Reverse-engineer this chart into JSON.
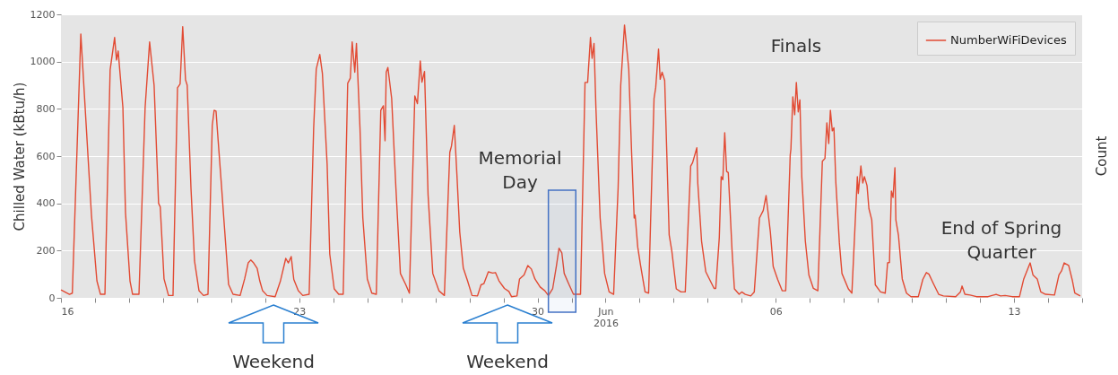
{
  "chart_data": {
    "type": "line",
    "ylabel": "Chilled Water (kBtu/h)",
    "y2label": "Count",
    "xlim": [
      "2016-05-16",
      "2016-06-15"
    ],
    "xticks": [
      {
        "value": "2016-05-16",
        "label": "16"
      },
      {
        "value": "2016-05-17",
        "label": null
      },
      {
        "value": "2016-05-18",
        "label": null
      },
      {
        "value": "2016-05-19",
        "label": null
      },
      {
        "value": "2016-05-20",
        "label": null
      },
      {
        "value": "2016-05-21",
        "label": null
      },
      {
        "value": "2016-05-22",
        "label": null
      },
      {
        "value": "2016-05-23",
        "label": "23"
      },
      {
        "value": "2016-05-24",
        "label": null
      },
      {
        "value": "2016-05-25",
        "label": null
      },
      {
        "value": "2016-05-26",
        "label": null
      },
      {
        "value": "2016-05-27",
        "label": null
      },
      {
        "value": "2016-05-28",
        "label": null
      },
      {
        "value": "2016-05-29",
        "label": null
      },
      {
        "value": "2016-05-30",
        "label": "30"
      },
      {
        "value": "2016-05-31",
        "label": null
      },
      {
        "value": "2016-06-01",
        "label": "Jun\n2016"
      },
      {
        "value": "2016-06-02",
        "label": null
      },
      {
        "value": "2016-06-03",
        "label": null
      },
      {
        "value": "2016-06-04",
        "label": null
      },
      {
        "value": "2016-06-05",
        "label": null
      },
      {
        "value": "2016-06-06",
        "label": "06"
      },
      {
        "value": "2016-06-07",
        "label": null
      },
      {
        "value": "2016-06-08",
        "label": null
      },
      {
        "value": "2016-06-09",
        "label": null
      },
      {
        "value": "2016-06-10",
        "label": null
      },
      {
        "value": "2016-06-11",
        "label": null
      },
      {
        "value": "2016-06-12",
        "label": null
      },
      {
        "value": "2016-06-13",
        "label": "13"
      },
      {
        "value": "2016-06-14",
        "label": null
      },
      {
        "value": "2016-06-15",
        "label": null
      }
    ],
    "ylim": [
      0,
      1200
    ],
    "yticks": [
      0,
      200,
      400,
      600,
      800,
      1000,
      1200
    ],
    "grid": "y",
    "legend": "top right",
    "bands": [
      {
        "axis": "x",
        "from": "2016-05-30T07:40",
        "to": "2016-05-31T03:00",
        "color": "#4472c4"
      }
    ],
    "annotations": [
      "Finals",
      "Memorial Day",
      "End of Spring Quarter",
      "Weekend",
      "Weekend"
    ],
    "series": [
      {
        "name": "NumberWiFiDevices",
        "color": "#e24a33",
        "x": [
          "2016-05-16T00:00",
          "2016-05-16T06:00",
          "2016-05-16T08:00",
          "2016-05-16T14:00",
          "2016-05-16T21:30",
          "2016-05-17T01:20",
          "2016-05-17T03:50",
          "2016-05-17T07:00",
          "2016-05-17T10:40",
          "2016-05-17T13:50",
          "2016-05-17T15:10",
          "2016-05-17T16:20",
          "2016-05-17T19:40",
          "2016-05-17T21:30",
          "2016-05-18T00:40",
          "2016-05-18T02:30",
          "2016-05-18T07:00",
          "2016-05-18T11:20",
          "2016-05-18T14:30",
          "2016-05-18T17:40",
          "2016-05-18T20:50",
          "2016-05-18T22:00",
          "2016-05-19T00:40",
          "2016-05-19T03:50",
          "2016-05-19T07:00",
          "2016-05-19T10:10",
          "2016-05-19T12:00",
          "2016-05-19T13:50",
          "2016-05-19T15:50",
          "2016-05-19T17:00",
          "2016-05-19T19:40",
          "2016-05-19T22:10",
          "2016-05-20T01:20",
          "2016-05-20T04:30",
          "2016-05-20T07:40",
          "2016-05-20T10:40",
          "2016-05-20T12:00",
          "2016-05-20T13:20",
          "2016-05-20T14:30",
          "2016-05-20T17:10",
          "2016-05-20T20:10",
          "2016-05-20T22:10",
          "2016-05-21T01:20",
          "2016-05-21T06:20",
          "2016-05-21T09:30",
          "2016-05-21T12:00",
          "2016-05-21T13:50",
          "2016-05-21T15:50",
          "2016-05-21T18:20",
          "2016-05-21T20:10",
          "2016-05-21T22:10",
          "2016-05-22T01:20",
          "2016-05-22T07:00",
          "2016-05-22T10:40",
          "2016-05-22T14:30",
          "2016-05-22T16:20",
          "2016-05-22T18:20",
          "2016-05-22T20:10",
          "2016-05-22T23:20",
          "2016-05-23T02:30",
          "2016-05-23T07:00",
          "2016-05-23T10:10",
          "2016-05-23T12:00",
          "2016-05-23T14:30",
          "2016-05-23T16:20",
          "2016-05-23T19:40",
          "2016-05-23T21:30",
          "2016-05-24T00:40",
          "2016-05-24T03:50",
          "2016-05-24T07:00",
          "2016-05-24T10:10",
          "2016-05-24T12:00",
          "2016-05-24T13:20",
          "2016-05-24T15:10",
          "2016-05-24T16:20",
          "2016-05-24T18:50",
          "2016-05-24T20:50",
          "2016-05-25T00:00",
          "2016-05-25T03:10",
          "2016-05-25T06:20",
          "2016-05-25T09:30",
          "2016-05-25T11:20",
          "2016-05-25T12:30",
          "2016-05-25T13:20",
          "2016-05-25T14:30",
          "2016-05-25T17:10",
          "2016-05-25T20:10",
          "2016-05-25T23:20",
          "2016-05-26T03:10",
          "2016-05-26T05:40",
          "2016-05-26T09:30",
          "2016-05-26T11:20",
          "2016-05-26T13:20",
          "2016-05-26T14:30",
          "2016-05-26T16:20",
          "2016-05-26T18:50",
          "2016-05-26T22:10",
          "2016-05-27T02:30",
          "2016-05-27T06:20",
          "2016-05-27T10:10",
          "2016-05-27T11:20",
          "2016-05-27T13:20",
          "2016-05-27T15:10",
          "2016-05-27T17:10",
          "2016-05-27T19:40",
          "2016-05-27T22:40",
          "2016-05-28T01:50",
          "2016-05-28T05:40",
          "2016-05-28T08:10",
          "2016-05-28T10:10",
          "2016-05-28T13:20",
          "2016-05-28T16:20",
          "2016-05-28T18:20",
          "2016-05-28T20:50",
          "2016-05-29T00:40",
          "2016-05-29T03:50",
          "2016-05-29T05:40",
          "2016-05-29T09:30",
          "2016-05-29T11:20",
          "2016-05-29T14:30",
          "2016-05-29T17:10",
          "2016-05-29T19:40",
          "2016-05-29T22:10",
          "2016-05-30T01:50",
          "2016-05-30T05:10",
          "2016-05-30T07:40",
          "2016-05-30T10:40",
          "2016-05-30T13:20",
          "2016-05-30T15:10",
          "2016-05-30T17:10",
          "2016-05-30T18:50",
          "2016-05-30T22:10",
          "2016-05-31T01:20",
          "2016-05-31T06:20",
          "2016-05-31T09:30",
          "2016-05-31T11:20",
          "2016-05-31T13:20",
          "2016-05-31T14:30",
          "2016-05-31T15:50",
          "2016-05-31T17:10",
          "2016-05-31T20:10",
          "2016-05-31T23:20",
          "2016-06-01T02:30",
          "2016-06-01T05:40",
          "2016-06-01T08:50",
          "2016-06-01T10:40",
          "2016-06-01T13:20",
          "2016-06-01T16:20",
          "2016-06-01T18:20",
          "2016-06-01T20:10",
          "2016-06-01T20:50",
          "2016-06-01T22:40",
          "2016-06-02T00:40",
          "2016-06-02T03:50",
          "2016-06-02T06:20",
          "2016-06-02T10:10",
          "2016-06-02T11:20",
          "2016-06-02T13:20",
          "2016-06-02T14:30",
          "2016-06-02T15:50",
          "2016-06-02T17:40",
          "2016-06-02T20:50",
          "2016-06-02T22:40",
          "2016-06-03T01:50",
          "2016-06-03T05:10",
          "2016-06-03T08:10",
          "2016-06-03T12:00",
          "2016-06-03T13:20",
          "2016-06-03T16:20",
          "2016-06-03T17:00",
          "2016-06-03T19:40",
          "2016-06-03T22:40",
          "2016-06-04T04:30",
          "2016-06-04T05:40",
          "2016-06-04T08:10",
          "2016-06-04T09:30",
          "2016-06-04T10:40",
          "2016-06-04T12:00",
          "2016-06-04T13:20",
          "2016-06-04T14:30",
          "2016-06-04T17:10",
          "2016-06-04T18:50",
          "2016-06-04T22:10",
          "2016-06-05T00:00",
          "2016-06-05T02:30",
          "2016-06-05T06:20",
          "2016-06-05T08:50",
          "2016-06-05T12:30",
          "2016-06-05T15:10",
          "2016-06-05T17:10",
          "2016-06-05T20:10",
          "2016-06-05T22:10",
          "2016-06-06T01:20",
          "2016-06-06T04:30",
          "2016-06-06T07:00",
          "2016-06-06T10:10",
          "2016-06-06T10:40",
          "2016-06-06T12:00",
          "2016-06-06T13:20",
          "2016-06-06T14:30",
          "2016-06-06T15:50",
          "2016-06-06T17:00",
          "2016-06-06T18:20",
          "2016-06-06T20:50",
          "2016-06-06T23:20",
          "2016-06-07T02:30",
          "2016-06-07T05:40",
          "2016-06-07T08:50",
          "2016-06-07T10:40",
          "2016-06-07T12:00",
          "2016-06-07T13:20",
          "2016-06-07T14:30",
          "2016-06-07T15:50",
          "2016-06-07T17:00",
          "2016-06-07T18:20",
          "2016-06-07T20:50",
          "2016-06-07T22:40",
          "2016-06-08T03:10",
          "2016-06-08T05:40",
          "2016-06-08T06:50",
          "2016-06-08T09:30",
          "2016-06-08T10:10",
          "2016-06-08T12:00",
          "2016-06-08T13:20",
          "2016-06-08T14:30",
          "2016-06-08T16:20",
          "2016-06-08T17:40",
          "2016-06-08T19:40",
          "2016-06-08T22:10",
          "2016-06-09T01:50",
          "2016-06-09T05:10",
          "2016-06-09T06:50",
          "2016-06-09T08:10",
          "2016-06-09T09:30",
          "2016-06-09T10:40",
          "2016-06-09T12:00",
          "2016-06-09T12:40",
          "2016-06-09T14:30",
          "2016-06-09T17:10",
          "2016-06-09T20:10",
          "2016-06-09T23:20",
          "2016-06-10T04:30",
          "2016-06-10T07:40",
          "2016-06-10T10:10",
          "2016-06-10T12:00",
          "2016-06-10T15:10",
          "2016-06-10T18:50",
          "2016-06-10T22:10",
          "2016-06-11T06:50",
          "2016-06-11T10:10",
          "2016-06-11T11:20",
          "2016-06-11T13:20",
          "2016-06-11T17:00",
          "2016-06-11T21:30",
          "2016-06-12T05:40",
          "2016-06-12T11:20",
          "2016-06-12T14:30",
          "2016-06-12T17:40",
          "2016-06-12T22:40",
          "2016-06-13T03:50",
          "2016-06-13T06:50",
          "2016-06-13T11:20",
          "2016-06-13T13:20",
          "2016-06-13T16:20",
          "2016-06-13T18:50",
          "2016-06-13T22:10",
          "2016-06-14T04:30",
          "2016-06-14T07:40",
          "2016-06-14T09:30",
          "2016-06-14T11:20",
          "2016-06-14T14:30",
          "2016-06-14T17:10",
          "2016-06-14T18:50",
          "2016-06-14T22:40"
        ],
        "values": [
          34,
          15,
          20,
          1117,
          350,
          72,
          15,
          15,
          965,
          1102,
          1007,
          1045,
          806,
          361,
          72,
          15,
          15,
          806,
          1083,
          900,
          400,
          385,
          80,
          10,
          10,
          889,
          905,
          1148,
          923,
          900,
          464,
          156,
          30,
          10,
          15,
          730,
          794,
          790,
          692,
          475,
          224,
          57,
          15,
          10,
          80,
          148,
          160,
          148,
          125,
          72,
          30,
          10,
          5,
          70,
          167,
          148,
          175,
          78,
          30,
          10,
          15,
          718,
          969,
          1030,
          950,
          566,
          186,
          38,
          15,
          15,
          908,
          930,
          1083,
          955,
          1077,
          718,
          338,
          80,
          20,
          15,
          794,
          813,
          665,
          955,
          975,
          844,
          464,
          103,
          55,
          20,
          855,
          822,
          1003,
          913,
          958,
          437,
          103,
          30,
          10,
          616,
          642,
          730,
          522,
          279,
          126,
          72,
          10,
          8,
          55,
          60,
          110,
          105,
          107,
          72,
          40,
          27,
          5,
          8,
          80,
          97,
          137,
          122,
          80,
          46,
          30,
          10,
          38,
          135,
          210,
          190,
          103,
          57,
          15,
          15,
          912,
          912,
          1102,
          1014,
          1077,
          806,
          338,
          103,
          25,
          15,
          464,
          900,
          1155,
          969,
          616,
          338,
          350,
          215,
          137,
          25,
          20,
          844,
          890,
          1053,
          925,
          955,
          920,
          266,
          200,
          38,
          25,
          25,
          558,
          572,
          635,
          486,
          240,
          110,
          40,
          40,
          255,
          513,
          500,
          699,
          535,
          530,
          200,
          38,
          15,
          25,
          15,
          8,
          25,
          338,
          370,
          433,
          279,
          133,
          78,
          30,
          30,
          604,
          630,
          851,
          775,
          912,
          787,
          838,
          513,
          240,
          97,
          40,
          30,
          578,
          590,
          741,
          653,
          794,
          707,
          720,
          490,
          233,
          103,
          38,
          20,
          171,
          513,
          442,
          558,
          486,
          513,
          475,
          378,
          330,
          55,
          25,
          20,
          148,
          150,
          452,
          425,
          551,
          330,
          264,
          80,
          20,
          5,
          5,
          78,
          107,
          100,
          60,
          15,
          8,
          5,
          25,
          50,
          15,
          12,
          5,
          5,
          15,
          8,
          10,
          5,
          5,
          80,
          148,
          97,
          80,
          25,
          15,
          12,
          97,
          114,
          148,
          137,
          72,
          20,
          8
        ]
      }
    ]
  }
}
